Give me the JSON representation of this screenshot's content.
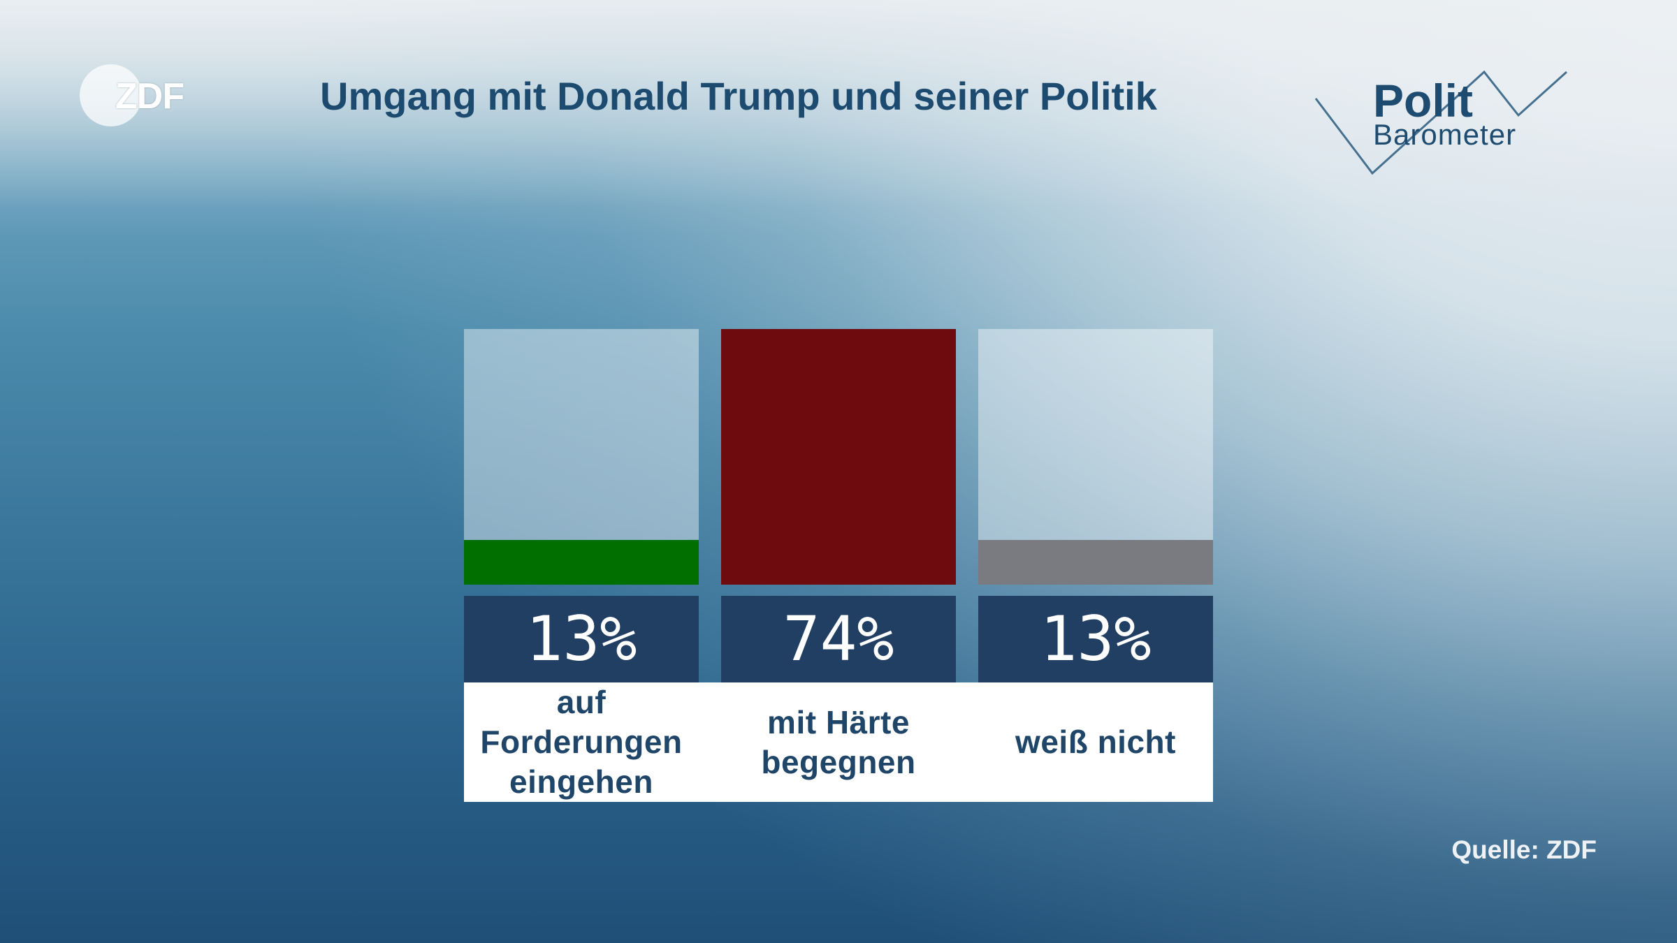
{
  "branding": {
    "broadcaster_logo": "ZDF",
    "programme_logo": {
      "line1": "Polit",
      "line2": "Barometer"
    }
  },
  "source": "Quelle: ZDF",
  "colors": {
    "title_text": "#1d4a6f",
    "logo_text": "#1e4b70",
    "logo_line": "#46708f",
    "value_box": "#213f63",
    "value_text": "#ffffff",
    "category_text": "#1f4568",
    "label_panel": "#ffffff",
    "source_text": "#eef2f5"
  },
  "chart_data": {
    "type": "bar",
    "title": "Umgang mit Donald Trump und seiner Politik",
    "categories": [
      "auf Forderungen eingehen",
      "mit Härte begegnen",
      "weiß nicht"
    ],
    "values": [
      13,
      74,
      13
    ],
    "value_labels": [
      "13%",
      "74%",
      "13%"
    ],
    "colors": [
      "#006f00",
      "#6e0b0e",
      "#7a7b80"
    ],
    "ylim": [
      0,
      74
    ],
    "grid": false,
    "legend": "none"
  }
}
